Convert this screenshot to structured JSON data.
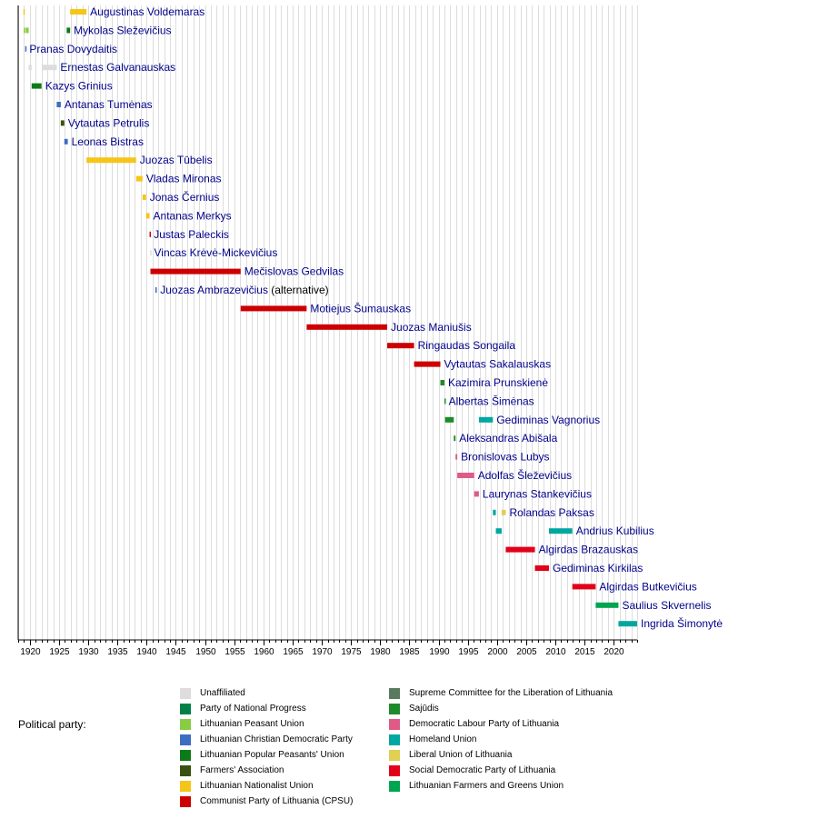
{
  "chart_data": {
    "type": "timeline",
    "title": "",
    "xlabel": "",
    "ylabel": "",
    "xlim": [
      1918,
      2024
    ],
    "grid": true,
    "ticks": [
      1920,
      1925,
      1930,
      1935,
      1940,
      1945,
      1950,
      1955,
      1960,
      1965,
      1970,
      1975,
      1980,
      1985,
      1990,
      1995,
      2000,
      2005,
      2010,
      2015,
      2020
    ],
    "rows": [
      {
        "name": "Augustinas Voldemaras",
        "terms": [
          {
            "start": 1918.9,
            "end": 1918.95,
            "party": "Lithuanian Nationalist Union"
          },
          {
            "start": 1926.9,
            "end": 1929.7,
            "party": "Lithuanian Nationalist Union"
          }
        ]
      },
      {
        "name": "Mykolas Sleževičius",
        "terms": [
          {
            "start": 1918.95,
            "end": 1919.2,
            "party": "Lithuanian Peasant Union"
          },
          {
            "start": 1919.3,
            "end": 1919.8,
            "party": "Lithuanian Peasant Union"
          },
          {
            "start": 1926.3,
            "end": 1926.9,
            "party": "Lithuanian Popular Peasants' Union"
          }
        ]
      },
      {
        "name": "Pranas Dovydaitis",
        "terms": [
          {
            "start": 1919.2,
            "end": 1919.3,
            "party": "Lithuanian Christian Democratic Party"
          }
        ]
      },
      {
        "name": "Ernestas Galvanauskas",
        "terms": [
          {
            "start": 1919.8,
            "end": 1920.3,
            "party": "Unaffiliated"
          },
          {
            "start": 1922.2,
            "end": 1924.6,
            "party": "Unaffiliated"
          }
        ]
      },
      {
        "name": "Kazys Grinius",
        "terms": [
          {
            "start": 1920.3,
            "end": 1922.0,
            "party": "Lithuanian Popular Peasants' Union"
          }
        ]
      },
      {
        "name": "Antanas Tumėnas",
        "terms": [
          {
            "start": 1924.6,
            "end": 1925.3,
            "party": "Lithuanian Christian Democratic Party"
          }
        ]
      },
      {
        "name": "Vytautas Petrulis",
        "terms": [
          {
            "start": 1925.3,
            "end": 1925.9,
            "party": "Farmers' Association"
          }
        ]
      },
      {
        "name": "Leonas Bistras",
        "terms": [
          {
            "start": 1925.9,
            "end": 1926.5,
            "party": "Lithuanian Christian Democratic Party"
          }
        ]
      },
      {
        "name": "Juozas Tūbelis",
        "terms": [
          {
            "start": 1929.7,
            "end": 1938.2,
            "party": "Lithuanian Nationalist Union"
          }
        ]
      },
      {
        "name": "Vladas Mironas",
        "terms": [
          {
            "start": 1938.2,
            "end": 1939.3,
            "party": "Lithuanian Nationalist Union"
          }
        ]
      },
      {
        "name": "Jonas Černius",
        "terms": [
          {
            "start": 1939.3,
            "end": 1939.9,
            "party": "Lithuanian Nationalist Union"
          }
        ]
      },
      {
        "name": "Antanas Merkys",
        "terms": [
          {
            "start": 1939.9,
            "end": 1940.5,
            "party": "Lithuanian Nationalist Union"
          }
        ]
      },
      {
        "name": "Justas Paleckis",
        "terms": [
          {
            "start": 1940.5,
            "end": 1940.6,
            "party": "Communist Party of Lithuania (CPSU)"
          }
        ]
      },
      {
        "name": "Vincas Krėvė-Mickevičius",
        "terms": [
          {
            "start": 1940.6,
            "end": 1940.65,
            "party": "Unaffiliated"
          }
        ]
      },
      {
        "name": "Mečislovas Gedvilas",
        "terms": [
          {
            "start": 1940.65,
            "end": 1956.1,
            "party": "Communist Party of Lithuania (CPSU)"
          }
        ]
      },
      {
        "name": "Juozas Ambrazevičius",
        "note": "(alternative)",
        "terms": [
          {
            "start": 1941.5,
            "end": 1941.7,
            "party": "Lithuanian Christian Democratic Party"
          }
        ]
      },
      {
        "name": "Motiejus Šumauskas",
        "terms": [
          {
            "start": 1956.1,
            "end": 1967.4,
            "party": "Communist Party of Lithuania (CPSU)"
          }
        ]
      },
      {
        "name": "Juozas Maniušis",
        "terms": [
          {
            "start": 1967.4,
            "end": 1981.2,
            "party": "Communist Party of Lithuania (CPSU)"
          }
        ]
      },
      {
        "name": "Ringaudas Songaila",
        "terms": [
          {
            "start": 1981.2,
            "end": 1985.8,
            "party": "Communist Party of Lithuania (CPSU)"
          }
        ]
      },
      {
        "name": "Vytautas Sakalauskas",
        "terms": [
          {
            "start": 1985.8,
            "end": 1990.3,
            "party": "Communist Party of Lithuania (CPSU)"
          }
        ]
      },
      {
        "name": "Kazimira Prunskienė",
        "terms": [
          {
            "start": 1990.3,
            "end": 1991.0,
            "party": "Sajūdis"
          }
        ]
      },
      {
        "name": "Albertas Šimėnas",
        "terms": [
          {
            "start": 1991.0,
            "end": 1991.1,
            "party": "Sajūdis"
          }
        ]
      },
      {
        "name": "Gediminas Vagnorius",
        "terms": [
          {
            "start": 1991.1,
            "end": 1992.6,
            "party": "Sajūdis"
          },
          {
            "start": 1996.9,
            "end": 1999.3,
            "party": "Homeland Union"
          }
        ]
      },
      {
        "name": "Aleksandras Abišala",
        "terms": [
          {
            "start": 1992.6,
            "end": 1992.9,
            "party": "Sajūdis"
          }
        ]
      },
      {
        "name": "Bronislovas Lubys",
        "terms": [
          {
            "start": 1992.9,
            "end": 1993.2,
            "party": "Democratic Labour Party of Lithuania"
          }
        ]
      },
      {
        "name": "Adolfas Šleževičius",
        "terms": [
          {
            "start": 1993.2,
            "end": 1996.1,
            "party": "Democratic Labour Party of Lithuania"
          }
        ]
      },
      {
        "name": "Laurynas Stankevičius",
        "terms": [
          {
            "start": 1996.1,
            "end": 1996.9,
            "party": "Democratic Labour Party of Lithuania"
          }
        ]
      },
      {
        "name": "Rolandas Paksas",
        "terms": [
          {
            "start": 1999.3,
            "end": 1999.8,
            "party": "Homeland Union"
          },
          {
            "start": 2000.8,
            "end": 2001.5,
            "party": "Liberal Union of Lithuania"
          }
        ]
      },
      {
        "name": "Andrius Kubilius",
        "terms": [
          {
            "start": 1999.8,
            "end": 2000.8,
            "party": "Homeland Union"
          },
          {
            "start": 2008.9,
            "end": 2012.9,
            "party": "Homeland Union"
          }
        ]
      },
      {
        "name": "Algirdas Brazauskas",
        "terms": [
          {
            "start": 2001.5,
            "end": 2006.5,
            "party": "Social Democratic Party of Lithuania"
          }
        ]
      },
      {
        "name": "Gediminas Kirkilas",
        "terms": [
          {
            "start": 2006.5,
            "end": 2008.9,
            "party": "Social Democratic Party of Lithuania"
          }
        ]
      },
      {
        "name": "Algirdas Butkevičius",
        "terms": [
          {
            "start": 2012.9,
            "end": 2016.9,
            "party": "Social Democratic Party of Lithuania"
          }
        ]
      },
      {
        "name": "Saulius Skvernelis",
        "terms": [
          {
            "start": 2016.9,
            "end": 2020.8,
            "party": "Lithuanian Farmers and Greens Union"
          }
        ]
      },
      {
        "name": "Ingrida Šimonytė",
        "terms": [
          {
            "start": 2020.8,
            "end": 2024.0,
            "party": "Homeland Union"
          }
        ]
      }
    ]
  },
  "legend": {
    "title": "Political party:",
    "items": [
      {
        "label": "Unaffiliated",
        "color": "#dddddd"
      },
      {
        "label": "Party of National Progress",
        "color": "#008148"
      },
      {
        "label": "Lithuanian Peasant Union",
        "color": "#88cc44"
      },
      {
        "label": "Lithuanian Christian Democratic Party",
        "color": "#3e6cc0"
      },
      {
        "label": "Lithuanian Popular Peasants' Union",
        "color": "#0d7a1a"
      },
      {
        "label": "Farmers' Association",
        "color": "#3a5011"
      },
      {
        "label": "Lithuanian Nationalist Union",
        "color": "#f5c518"
      },
      {
        "label": "Communist Party of Lithuania (CPSU)",
        "color": "#cc0000"
      },
      {
        "label": "Supreme Committee for the Liberation of Lithuania",
        "color": "#5a7a60"
      },
      {
        "label": "Sajūdis",
        "color": "#1e8b2a"
      },
      {
        "label": "Democratic Labour Party of Lithuania",
        "color": "#e05a88"
      },
      {
        "label": "Homeland Union",
        "color": "#00a7a0"
      },
      {
        "label": "Liberal Union of Lithuania",
        "color": "#e0cf50"
      },
      {
        "label": "Social Democratic Party of Lithuania",
        "color": "#e2001a"
      },
      {
        "label": "Lithuanian Farmers and Greens Union",
        "color": "#00a550"
      }
    ]
  }
}
